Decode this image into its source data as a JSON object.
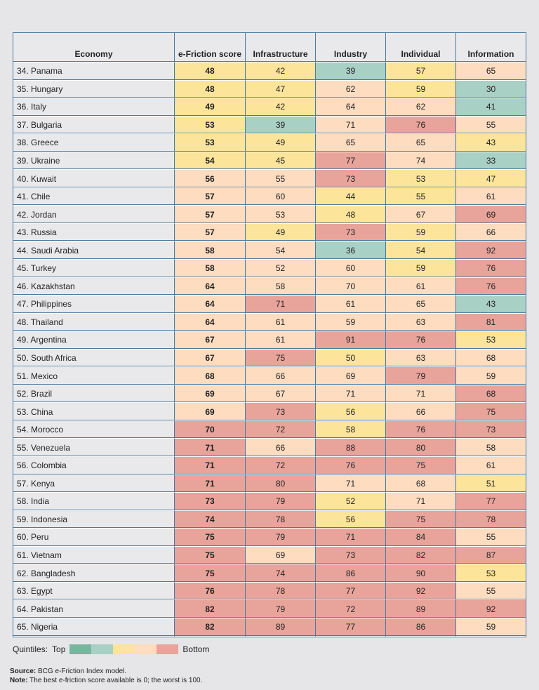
{
  "headers": [
    "Economy",
    "e-Friction score",
    "Infrastructure",
    "Industry",
    "Individual",
    "Information"
  ],
  "colors": {
    "q1": "#7ab5a0",
    "q2": "#a9d0c4",
    "q3": "#fce49a",
    "q4": "#fddcc0",
    "q5": "#e8a49a"
  },
  "rows": [
    {
      "name": "34. Panama",
      "v": [
        48,
        42,
        39,
        57,
        65
      ],
      "q": [
        3,
        3,
        2,
        3,
        4
      ]
    },
    {
      "name": "35. Hungary",
      "v": [
        48,
        47,
        62,
        59,
        30
      ],
      "q": [
        3,
        3,
        4,
        3,
        2
      ]
    },
    {
      "name": "36. Italy",
      "v": [
        49,
        42,
        64,
        62,
        41
      ],
      "q": [
        3,
        3,
        4,
        4,
        2
      ]
    },
    {
      "name": "37. Bulgaria",
      "v": [
        53,
        39,
        71,
        76,
        55
      ],
      "q": [
        3,
        2,
        4,
        5,
        4
      ]
    },
    {
      "name": "38. Greece",
      "v": [
        53,
        49,
        65,
        65,
        43
      ],
      "q": [
        3,
        3,
        4,
        4,
        3
      ]
    },
    {
      "name": "39. Ukraine",
      "v": [
        54,
        45,
        77,
        74,
        33
      ],
      "q": [
        3,
        3,
        5,
        4,
        2
      ]
    },
    {
      "name": "40. Kuwait",
      "v": [
        56,
        55,
        73,
        53,
        47
      ],
      "q": [
        4,
        4,
        5,
        3,
        3
      ]
    },
    {
      "name": "41. Chile",
      "v": [
        57,
        60,
        44,
        55,
        61
      ],
      "q": [
        4,
        4,
        3,
        3,
        4
      ]
    },
    {
      "name": "42. Jordan",
      "v": [
        57,
        53,
        48,
        67,
        69
      ],
      "q": [
        4,
        4,
        3,
        4,
        5
      ]
    },
    {
      "name": "43. Russia",
      "v": [
        57,
        49,
        73,
        59,
        66
      ],
      "q": [
        4,
        3,
        5,
        3,
        4
      ]
    },
    {
      "name": "44. Saudi Arabia",
      "v": [
        58,
        54,
        36,
        54,
        92
      ],
      "q": [
        4,
        4,
        2,
        3,
        5
      ]
    },
    {
      "name": "45. Turkey",
      "v": [
        58,
        52,
        60,
        59,
        76
      ],
      "q": [
        4,
        4,
        4,
        3,
        5
      ]
    },
    {
      "name": "46. Kazakhstan",
      "v": [
        64,
        58,
        70,
        61,
        76
      ],
      "q": [
        4,
        4,
        4,
        4,
        5
      ]
    },
    {
      "name": "47. Philippines",
      "v": [
        64,
        71,
        61,
        65,
        43
      ],
      "q": [
        4,
        5,
        4,
        4,
        2
      ]
    },
    {
      "name": "48. Thailand",
      "v": [
        64,
        61,
        59,
        63,
        81
      ],
      "q": [
        4,
        4,
        4,
        4,
        5
      ]
    },
    {
      "name": "49. Argentina",
      "v": [
        67,
        61,
        91,
        76,
        53
      ],
      "q": [
        4,
        4,
        5,
        5,
        3
      ]
    },
    {
      "name": "50. South Africa",
      "v": [
        67,
        75,
        50,
        63,
        68
      ],
      "q": [
        4,
        5,
        3,
        4,
        4
      ]
    },
    {
      "name": "51. Mexico",
      "v": [
        68,
        66,
        69,
        79,
        59
      ],
      "q": [
        4,
        4,
        4,
        5,
        4
      ]
    },
    {
      "name": "52. Brazil",
      "v": [
        69,
        67,
        71,
        71,
        68
      ],
      "q": [
        4,
        4,
        4,
        4,
        5
      ]
    },
    {
      "name": "53. China",
      "v": [
        69,
        73,
        56,
        66,
        75
      ],
      "q": [
        4,
        5,
        3,
        4,
        5
      ]
    },
    {
      "name": "54. Morocco",
      "v": [
        70,
        72,
        58,
        76,
        73
      ],
      "q": [
        5,
        5,
        3,
        5,
        5
      ]
    },
    {
      "name": "55. Venezuela",
      "v": [
        71,
        66,
        88,
        80,
        58
      ],
      "q": [
        5,
        4,
        5,
        5,
        4
      ]
    },
    {
      "name": "56. Colombia",
      "v": [
        71,
        72,
        76,
        75,
        61
      ],
      "q": [
        5,
        5,
        5,
        5,
        4
      ]
    },
    {
      "name": "57. Kenya",
      "v": [
        71,
        80,
        71,
        68,
        51
      ],
      "q": [
        5,
        5,
        4,
        4,
        3
      ]
    },
    {
      "name": "58. India",
      "v": [
        73,
        79,
        52,
        71,
        77
      ],
      "q": [
        5,
        5,
        3,
        4,
        5
      ]
    },
    {
      "name": "59. Indonesia",
      "v": [
        74,
        78,
        56,
        75,
        78
      ],
      "q": [
        5,
        5,
        3,
        5,
        5
      ]
    },
    {
      "name": "60. Peru",
      "v": [
        75,
        79,
        71,
        84,
        55
      ],
      "q": [
        5,
        5,
        5,
        5,
        4
      ]
    },
    {
      "name": "61. Vietnam",
      "v": [
        75,
        69,
        73,
        82,
        87
      ],
      "q": [
        5,
        4,
        5,
        5,
        5
      ]
    },
    {
      "name": "62. Bangladesh",
      "v": [
        75,
        74,
        86,
        90,
        53
      ],
      "q": [
        5,
        5,
        5,
        5,
        3
      ]
    },
    {
      "name": "63. Egypt",
      "v": [
        76,
        78,
        77,
        92,
        55
      ],
      "q": [
        5,
        5,
        5,
        5,
        4
      ]
    },
    {
      "name": "64. Pakistan",
      "v": [
        82,
        79,
        72,
        89,
        92
      ],
      "q": [
        5,
        5,
        5,
        5,
        5
      ]
    },
    {
      "name": "65. Nigeria",
      "v": [
        82,
        89,
        77,
        86,
        59
      ],
      "q": [
        5,
        5,
        5,
        5,
        4
      ]
    }
  ],
  "legend": {
    "label": "Quintiles:",
    "top": "Top",
    "bottom": "Bottom"
  },
  "source": {
    "label": "Source:",
    "text": " BCG e-Friction Index model."
  },
  "note": {
    "label": "Note:",
    "text": " The best e-friction score available is 0; the worst is 100."
  }
}
